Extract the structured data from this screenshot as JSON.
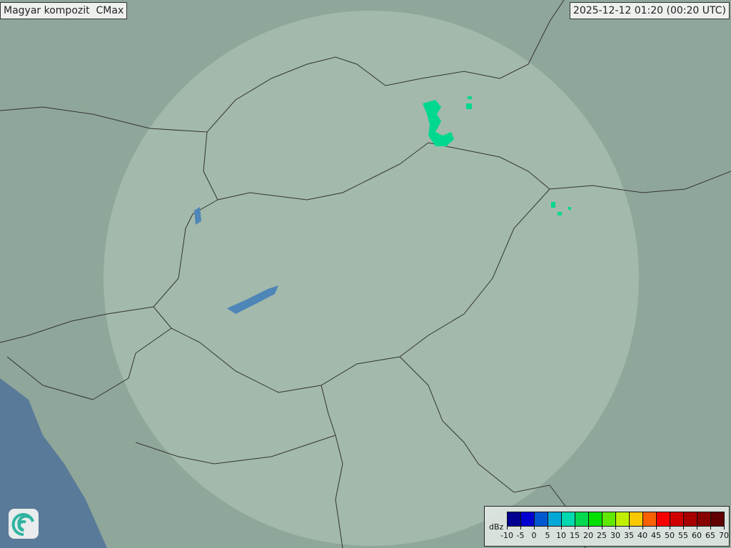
{
  "map": {
    "title": "Magyar kompozit  CMax",
    "timestamp": "2025-12-12 01:20 (00:20 UTC)",
    "colors": {
      "land": "#8fa79a",
      "coverage": "#b4c8bc",
      "water": "#5a7a99",
      "lake": "#4f86b8",
      "border": "#333333",
      "echo": "#00d890"
    }
  },
  "legend": {
    "unit": "dBz",
    "ticks": [
      "-10",
      "-5",
      "0",
      "5",
      "10",
      "15",
      "20",
      "25",
      "30",
      "35",
      "40",
      "45",
      "50",
      "55",
      "60",
      "65",
      "70"
    ],
    "colors": [
      "#000090",
      "#0000d0",
      "#0058d0",
      "#00a8d8",
      "#00d8b0",
      "#00d850",
      "#00e000",
      "#60e800",
      "#c0f000",
      "#f8c800",
      "#f86000",
      "#f80000",
      "#d00000",
      "#a80000",
      "#880000",
      "#600000"
    ]
  },
  "logo": {
    "icon": "swirl-logo-icon"
  }
}
